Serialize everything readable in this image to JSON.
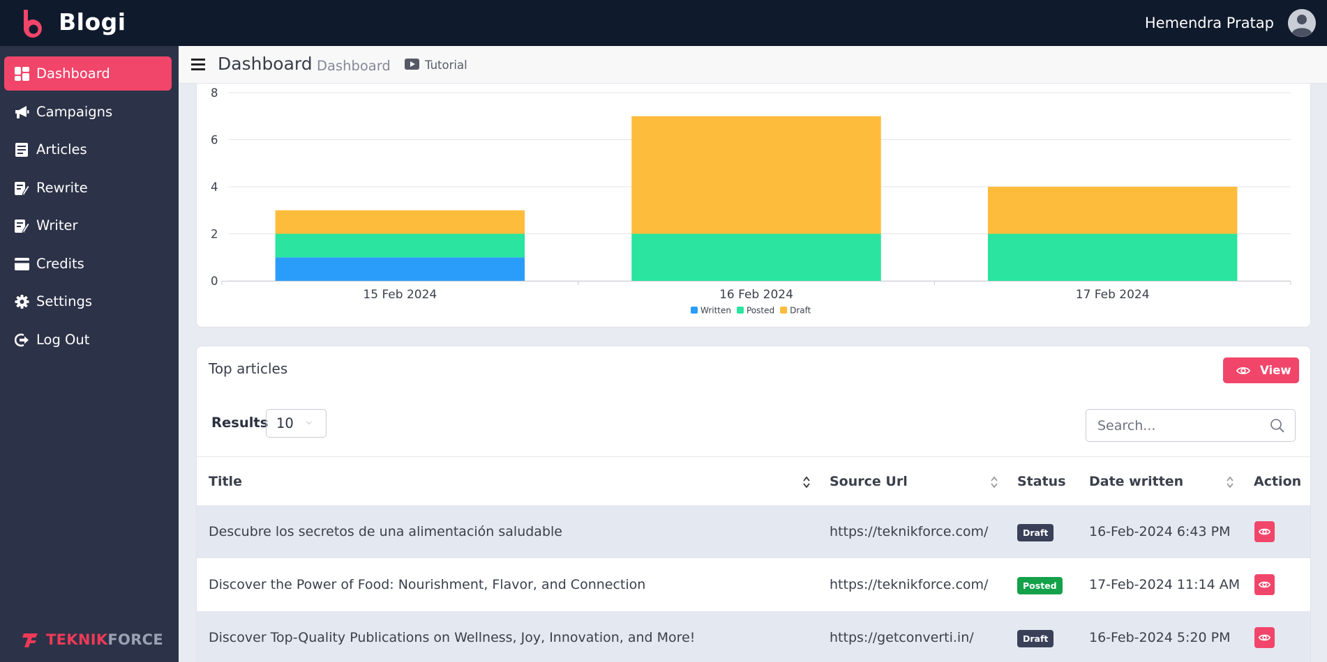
{
  "app": {
    "name": "Blogi"
  },
  "user": {
    "name": "Hemendra Pratap"
  },
  "sidebar": {
    "items": [
      {
        "label": "Dashboard",
        "icon": "dashboard-icon",
        "active": true
      },
      {
        "label": "Campaigns",
        "icon": "megaphone-icon",
        "active": false
      },
      {
        "label": "Articles",
        "icon": "article-icon",
        "active": false
      },
      {
        "label": "Rewrite",
        "icon": "edit-document-icon",
        "active": false
      },
      {
        "label": "Writer",
        "icon": "edit-document-icon",
        "active": false
      },
      {
        "label": "Credits",
        "icon": "credit-card-icon",
        "active": false
      },
      {
        "label": "Settings",
        "icon": "gear-icon",
        "active": false
      },
      {
        "label": "Log Out",
        "icon": "logout-icon",
        "active": false
      }
    ],
    "footer_brand_a": "TEKNIK",
    "footer_brand_b": "FORCE"
  },
  "header": {
    "title": "Dashboard",
    "breadcrumb": "Dashboard",
    "tutorial_label": "Tutorial"
  },
  "chart_data": {
    "type": "bar",
    "stacked": true,
    "categories": [
      "15 Feb 2024",
      "16 Feb 2024",
      "17 Feb 2024"
    ],
    "series": [
      {
        "name": "Written",
        "values": [
          1,
          0,
          0
        ],
        "color": "#2a9dfb"
      },
      {
        "name": "Posted",
        "values": [
          1,
          2,
          2
        ],
        "color": "#2ae49f"
      },
      {
        "name": "Draft",
        "values": [
          1,
          5,
          2
        ],
        "color": "#febc3c"
      }
    ],
    "y_ticks": [
      0,
      2,
      4,
      6,
      8
    ],
    "ylim": [
      0,
      8
    ],
    "grid": true,
    "legend_position": "bottom-center"
  },
  "articles": {
    "title": "Top articles",
    "view_label": "View",
    "results_label": "Results",
    "results_value": "10",
    "search_placeholder": "Search...",
    "columns": [
      "Title",
      "Source Url",
      "Status",
      "Date written",
      "Action"
    ],
    "rows": [
      {
        "title": "Descubre los secretos de una alimentación saludable",
        "source": "https://teknikforce.com/",
        "status": "Draft",
        "date": "16-Feb-2024 6:43 PM"
      },
      {
        "title": "Discover the Power of Food: Nourishment, Flavor, and Connection",
        "source": "https://teknikforce.com/",
        "status": "Posted",
        "date": "17-Feb-2024 11:14 AM"
      },
      {
        "title": "Discover Top-Quality Publications on Wellness, Joy, Innovation, and More!",
        "source": "https://getconverti.in/",
        "status": "Draft",
        "date": "16-Feb-2024 5:20 PM"
      }
    ]
  },
  "colors": {
    "accent": "#f2456a",
    "topbar": "#101a2d",
    "sidebar": "#2c3247",
    "draft_badge": "#3a4058",
    "posted_badge": "#13a14a"
  }
}
